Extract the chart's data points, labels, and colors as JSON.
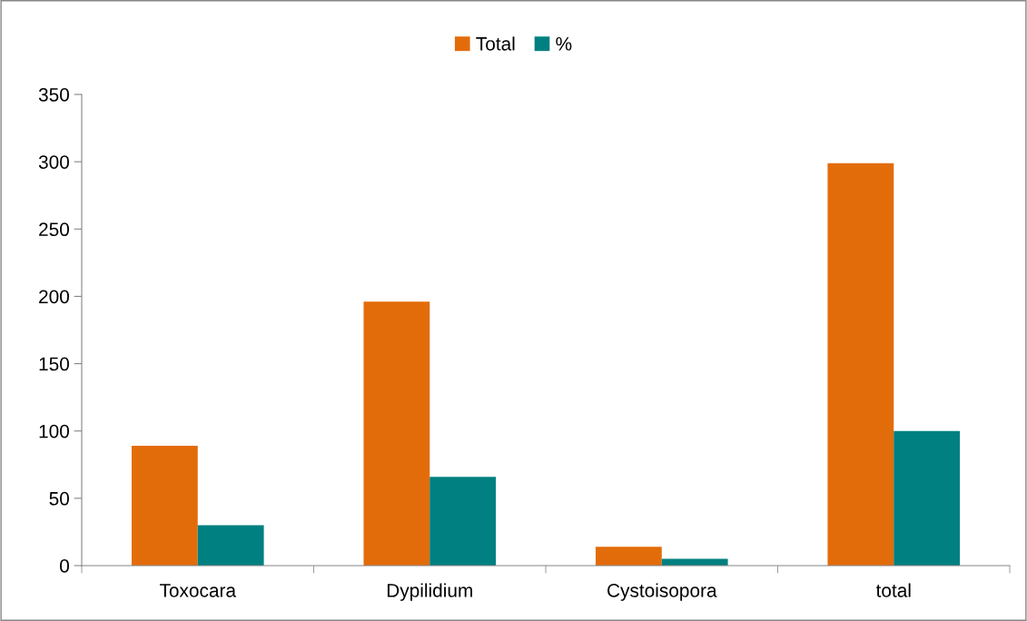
{
  "chart_data": {
    "type": "bar",
    "categories": [
      "Toxocara",
      "Dypilidium",
      "Cystoisopora",
      "total"
    ],
    "series": [
      {
        "name": "Total",
        "color": "#e36c0a",
        "values": [
          89,
          196,
          14,
          299
        ]
      },
      {
        "name": "%",
        "color": "#008080",
        "values": [
          30,
          66,
          5,
          100
        ]
      }
    ],
    "ylim": [
      0,
      350
    ],
    "yticks": [
      0,
      50,
      100,
      150,
      200,
      250,
      300,
      350
    ],
    "grid": false,
    "legend": "top"
  }
}
